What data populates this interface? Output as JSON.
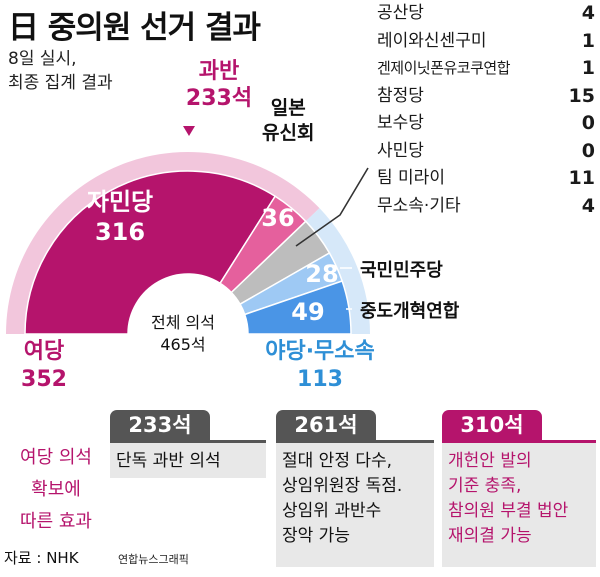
{
  "header": {
    "title": "日 중의원 선거 결과",
    "subtitle_1": "8일 실시,",
    "subtitle_2": "최종 집계 결과"
  },
  "majority": {
    "line1": "과반",
    "line2": "233석"
  },
  "total": {
    "label": "전체 의석",
    "value": "465석"
  },
  "ruling_label": {
    "line1": "여당",
    "line2": "352"
  },
  "opposition_label": {
    "line1": "야당·무소속",
    "line2": "113"
  },
  "ishin_label": {
    "line1": "일본",
    "line2": "유신회"
  },
  "dpp_label": "국민민주당",
  "centrist_label": "중도개혁연합",
  "chart_data": {
    "type": "semi-donut",
    "total": 465,
    "majority_threshold": 233,
    "slices": [
      {
        "name": "자민당",
        "value": 316,
        "group": "ruling",
        "color": "#b5146c"
      },
      {
        "name": "일본유신회",
        "value": 36,
        "group": "ruling",
        "color": "#e5609d"
      },
      {
        "name": "기타",
        "value": 36,
        "group": "opposition",
        "color": "#bdbdbd"
      },
      {
        "name": "국민민주당",
        "value": 28,
        "group": "opposition",
        "color": "#9ec9f4"
      },
      {
        "name": "중도개혁연합",
        "value": 49,
        "group": "opposition",
        "color": "#4a95e6"
      }
    ],
    "groups": [
      {
        "key": "ruling",
        "value": 352,
        "color": "#f2c6dc"
      },
      {
        "key": "opposition",
        "value": 113,
        "color": "#d6e8f9"
      }
    ],
    "inner_labels": [
      {
        "slice": 0,
        "name": "자민당",
        "value": "316"
      },
      {
        "slice": 1,
        "value": "36"
      },
      {
        "slice": 3,
        "value": "28"
      },
      {
        "slice": 4,
        "value": "49"
      }
    ]
  },
  "others": [
    {
      "name": "공산당",
      "value": "4"
    },
    {
      "name": "레이와신센구미",
      "value": "1"
    },
    {
      "name": "겐제이닛폰유코쿠연합",
      "value": "1"
    },
    {
      "name": "참정당",
      "value": "15"
    },
    {
      "name": "보수당",
      "value": "0"
    },
    {
      "name": "사민당",
      "value": "0"
    },
    {
      "name": "팀 미라이",
      "value": "11"
    },
    {
      "name": "무소속·기타",
      "value": "4"
    }
  ],
  "effect": {
    "line1": "여당 의석",
    "line2": "확보에",
    "line3": "따른 효과"
  },
  "thresholds": [
    {
      "seats": "233석",
      "lines": [
        "단독 과반 의석"
      ],
      "color": "#555555",
      "text_color": "#111111"
    },
    {
      "seats": "261석",
      "lines": [
        "절대 안정 다수,",
        "상임위원장 독점.",
        "상임위 과반수",
        "장악 가능"
      ],
      "color": "#555555",
      "text_color": "#111111"
    },
    {
      "seats": "310석",
      "lines": [
        "개헌안 발의",
        "기준 충족,",
        "참의원 부결 법안",
        "재의결 가능"
      ],
      "color": "#b5146c",
      "text_color": "#b5146c"
    }
  ],
  "source": "자료 : NHK",
  "credit": "연합뉴스그래픽"
}
